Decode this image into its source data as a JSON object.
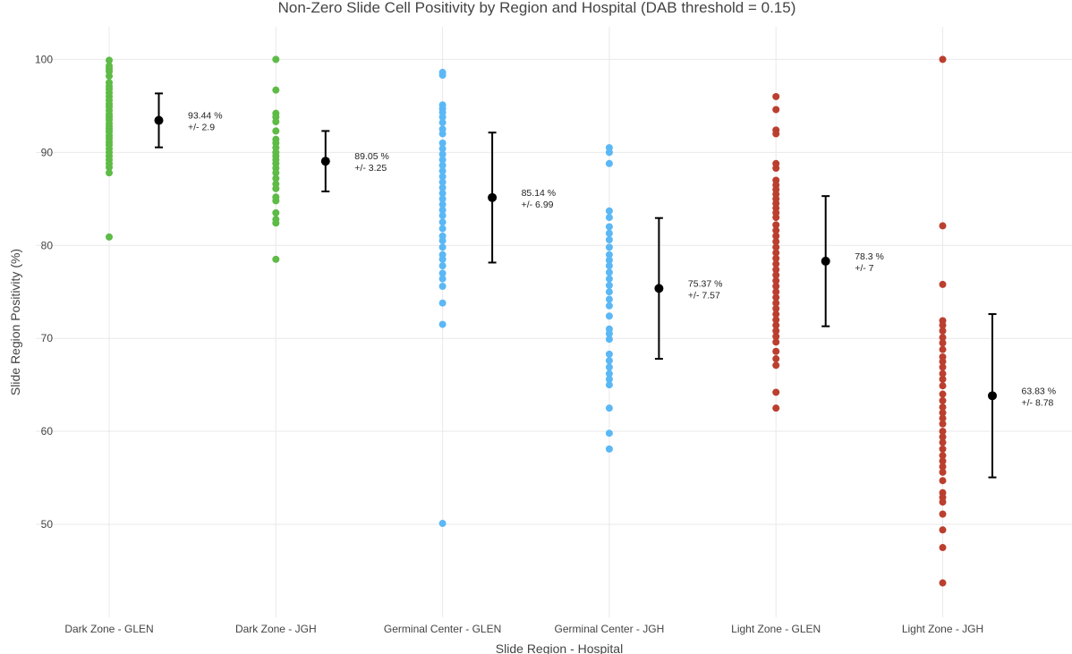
{
  "chart_data": {
    "type": "scatter",
    "title": "Non-Zero Slide Cell Positivity by Region and Hospital (DAB threshold = 0.15)",
    "xlabel": "Slide Region - Hospital",
    "ylabel": "Slide Region Positivity (%)",
    "ylim": [
      40,
      103.5
    ],
    "yticks": [
      50,
      60,
      70,
      80,
      90,
      100
    ],
    "grid": true,
    "categories": [
      "Dark Zone - GLEN",
      "Dark Zone - JGH",
      "Germinal Center - GLEN",
      "Germinal Center - JGH",
      "Light Zone - GLEN",
      "Light Zone - JGH"
    ],
    "series": [
      {
        "category": "Dark Zone - GLEN",
        "color": "#5dbb46",
        "points": [
          99.9,
          99.3,
          99.0,
          98.7,
          98.2,
          97.5,
          97.1,
          96.8,
          96.4,
          96.0,
          95.6,
          95.2,
          94.9,
          94.5,
          94.1,
          93.8,
          93.5,
          93.1,
          92.8,
          92.5,
          92.2,
          91.8,
          91.5,
          91.1,
          90.8,
          90.4,
          90.0,
          89.6,
          89.2,
          88.8,
          88.4,
          87.8,
          80.9
        ],
        "mean": 93.44,
        "sd": 2.9,
        "annotation": [
          "93.44 %",
          "+/-  2.9"
        ]
      },
      {
        "category": "Dark Zone - JGH",
        "color": "#5dbb46",
        "points": [
          100.0,
          96.7,
          94.2,
          93.8,
          93.3,
          92.3,
          91.4,
          91.0,
          90.5,
          90.0,
          89.6,
          89.2,
          88.8,
          88.3,
          87.8,
          87.2,
          86.6,
          86.1,
          85.2,
          84.8,
          83.5,
          82.8,
          82.4,
          78.5
        ],
        "mean": 89.05,
        "sd": 3.25,
        "annotation": [
          "89.05 %",
          "+/-  3.25"
        ]
      },
      {
        "category": "Germinal Center - GLEN",
        "color": "#5bb8f5",
        "points": [
          98.6,
          98.3,
          95.1,
          94.7,
          94.3,
          93.8,
          93.2,
          92.5,
          92.0,
          91.0,
          90.4,
          89.8,
          89.2,
          88.6,
          88.0,
          87.4,
          86.8,
          86.2,
          85.6,
          85.0,
          84.4,
          83.8,
          83.2,
          82.5,
          81.8,
          81.0,
          80.5,
          79.8,
          79.0,
          78.5,
          77.8,
          77.0,
          76.4,
          75.6,
          73.8,
          71.5,
          50.1
        ],
        "mean": 85.14,
        "sd": 6.99,
        "annotation": [
          "85.14 %",
          "+/-  6.99"
        ]
      },
      {
        "category": "Germinal Center - JGH",
        "color": "#5bb8f5",
        "points": [
          90.5,
          90.0,
          88.8,
          83.7,
          83.0,
          82.0,
          81.3,
          80.6,
          79.8,
          79.0,
          78.4,
          77.8,
          77.1,
          76.4,
          75.7,
          75.0,
          74.2,
          73.5,
          72.4,
          71.0,
          70.5,
          69.9,
          68.3,
          67.6,
          66.9,
          66.2,
          65.6,
          65.0,
          62.5,
          59.8,
          58.1
        ],
        "mean": 75.37,
        "sd": 7.57,
        "annotation": [
          "75.37 %",
          "+/-  7.57"
        ]
      },
      {
        "category": "Light Zone - GLEN",
        "color": "#bb3f2f",
        "points": [
          96.0,
          94.6,
          92.4,
          92.0,
          88.8,
          88.3,
          87.0,
          86.5,
          86.0,
          85.5,
          85.0,
          84.5,
          84.0,
          83.5,
          83.0,
          82.2,
          81.6,
          81.0,
          80.4,
          79.8,
          79.2,
          78.6,
          78.0,
          77.4,
          76.8,
          76.2,
          75.6,
          75.0,
          74.4,
          73.8,
          73.2,
          72.6,
          72.0,
          71.4,
          70.8,
          70.2,
          69.6,
          68.6,
          67.8,
          67.1,
          64.2,
          62.5
        ],
        "mean": 78.3,
        "sd": 7,
        "annotation": [
          "78.3 %",
          "+/-  7"
        ]
      },
      {
        "category": "Light Zone - JGH",
        "color": "#bb3f2f",
        "points": [
          100.0,
          82.1,
          75.8,
          71.9,
          71.4,
          70.8,
          70.1,
          69.5,
          68.8,
          68.0,
          67.5,
          66.9,
          66.2,
          65.6,
          64.9,
          64.0,
          63.3,
          62.6,
          62.0,
          61.4,
          60.8,
          60.0,
          59.4,
          58.8,
          58.1,
          57.4,
          56.8,
          56.2,
          55.6,
          54.7,
          53.4,
          52.9,
          52.4,
          51.1,
          49.4,
          47.5,
          43.7
        ],
        "mean": 63.83,
        "sd": 8.78,
        "annotation": [
          "63.83 %",
          "+/-  8.78"
        ]
      }
    ]
  }
}
